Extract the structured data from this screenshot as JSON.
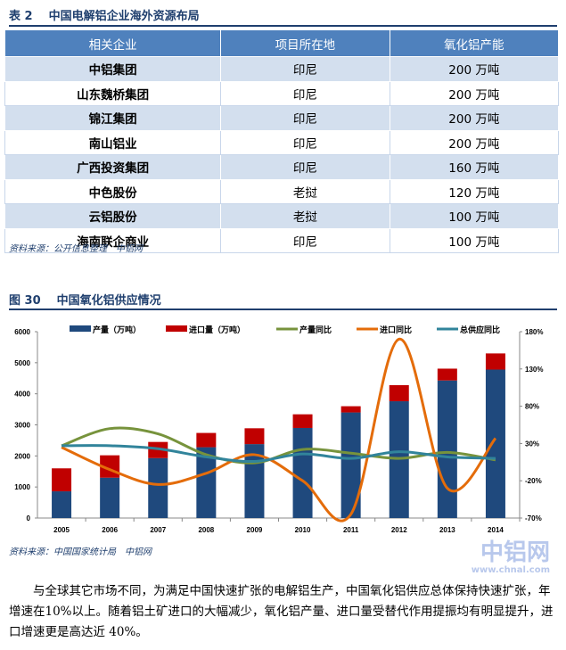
{
  "table": {
    "caption_num": "表 2",
    "caption": "中国电解铝企业海外资源布局",
    "headers": [
      "相关企业",
      "项目所在地",
      "氧化铝产能"
    ],
    "rows": [
      [
        "中铝集团",
        "印尼",
        "200 万吨"
      ],
      [
        "山东魏桥集团",
        "印尼",
        "200 万吨"
      ],
      [
        "锦江集团",
        "印尼",
        "200 万吨"
      ],
      [
        "南山铝业",
        "印尼",
        "200 万吨"
      ],
      [
        "广西投资集团",
        "印尼",
        "160 万吨"
      ],
      [
        "中色股份",
        "老挝",
        "120 万吨"
      ],
      [
        "云铝股份",
        "老挝",
        "100 万吨"
      ],
      [
        "海南联企商业",
        "印尼",
        "100 万吨"
      ]
    ],
    "source": "资料来源：公开信息整理　中铝网"
  },
  "figure": {
    "num": "图 30",
    "title": "中国氧化铝供应情况",
    "source": "资料来源：中国国家统计局　中铝网"
  },
  "chart_data": {
    "type": "bar+line",
    "categories": [
      "2005",
      "2006",
      "2007",
      "2008",
      "2009",
      "2010",
      "2011",
      "2012",
      "2013",
      "2014"
    ],
    "y_left": {
      "range": [
        0,
        6000
      ],
      "ticks": [
        "0",
        "1000",
        "2000",
        "3000",
        "4000",
        "5000",
        "6000"
      ]
    },
    "y_right": {
      "range": [
        -70,
        180
      ],
      "ticks": [
        "-70%",
        "-20%",
        "30%",
        "80%",
        "130%",
        "180%"
      ]
    },
    "legend_position": "top",
    "bars": [
      {
        "name": "产量（万吨）",
        "color": "#1f497d",
        "values": [
          860,
          1300,
          1930,
          2280,
          2380,
          2900,
          3400,
          3760,
          4430,
          4780
        ]
      },
      {
        "name": "进口量（万吨）",
        "color": "#c00000",
        "values": [
          740,
          720,
          520,
          460,
          510,
          440,
          200,
          520,
          380,
          520
        ]
      }
    ],
    "lines": [
      {
        "name": "产量同比",
        "color": "#77933c",
        "values": [
          27,
          50,
          43,
          15,
          4,
          22,
          17,
          10,
          18,
          8
        ]
      },
      {
        "name": "进口同比",
        "color": "#e46c0a",
        "values": [
          25,
          -5,
          -25,
          -10,
          15,
          -20,
          -65,
          170,
          -30,
          37
        ]
      },
      {
        "name": "总供应同比",
        "color": "#31849b",
        "values": [
          27,
          27,
          23,
          12,
          6,
          16,
          10,
          19,
          12,
          10
        ]
      }
    ]
  },
  "paragraph": "与全球其它市场不同，为满足中国快速扩张的电解铝生产，中国氧化铝供应总体保持快速扩张，年增速在10%以上。随着铝土矿进口的大幅减少，氧化铝产量、进口量受替代作用提振均有明显提升，进口增速更是高达近 40%。",
  "watermark": {
    "logo": "中铝网",
    "url": "www.chnal.com"
  }
}
